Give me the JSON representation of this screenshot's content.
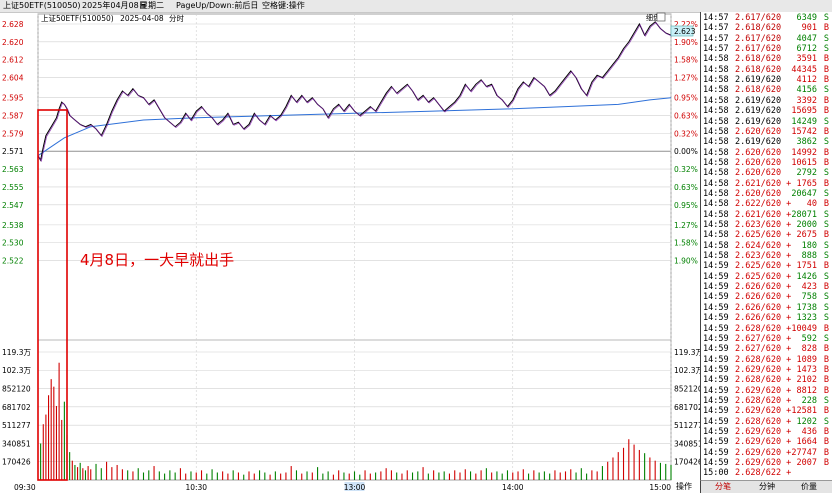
{
  "header": {
    "title": "上证50ETF(510050)",
    "date": "2025年04月08日",
    "weekday": "星期二",
    "hint": "PageUp/Down:前后日",
    "space_hint": "空格键:操作",
    "chart_date": "2025-04-08",
    "chart_mode": "分时",
    "zoom_label": "细盘",
    "current_price": "2.623"
  },
  "annotation": "4月8日，一大早就出手",
  "colors": {
    "price_line": "#000000",
    "avg_line": "#2e70d8",
    "up": "#d00000",
    "down": "#008000",
    "highlight_box": "#e00000"
  },
  "chart_data": {
    "type": "line",
    "prev_close": 2.571,
    "price_ticks": [
      "2.628",
      "2.620",
      "2.612",
      "2.604",
      "2.595",
      "2.587",
      "2.579",
      "2.571",
      "2.563",
      "2.555",
      "2.547",
      "2.538",
      "2.530",
      "2.522"
    ],
    "price_tick_values": [
      2.628,
      2.62,
      2.612,
      2.604,
      2.595,
      2.587,
      2.579,
      2.571,
      2.563,
      2.555,
      2.547,
      2.538,
      2.53,
      2.522
    ],
    "pct_ticks": [
      "2.22%",
      "1.90%",
      "1.58%",
      "1.27%",
      "0.95%",
      "0.63%",
      "0.32%",
      "0.00%",
      "0.32%",
      "0.63%",
      "0.95%",
      "1.27%",
      "1.58%",
      "1.90%"
    ],
    "volume_ticks": [
      "119.3万",
      "102.3万",
      "852120",
      "681702",
      "511277",
      "340851",
      "170426"
    ],
    "volume_tick_values": [
      1193000,
      1023000,
      852120,
      681702,
      511277,
      340851,
      170426
    ],
    "x_ticks": [
      "09:30",
      "10:30",
      "13:00",
      "14:00",
      "15:00"
    ],
    "x_tick_minutes": [
      0,
      60,
      120,
      180,
      240
    ],
    "price": [
      [
        0,
        2.569
      ],
      [
        1,
        2.567
      ],
      [
        2,
        2.573
      ],
      [
        3,
        2.578
      ],
      [
        5,
        2.582
      ],
      [
        7,
        2.586
      ],
      [
        8,
        2.59
      ],
      [
        9,
        2.593
      ],
      [
        10,
        2.592
      ],
      [
        11,
        2.59
      ],
      [
        12,
        2.587
      ],
      [
        14,
        2.585
      ],
      [
        16,
        2.583
      ],
      [
        18,
        2.582
      ],
      [
        20,
        2.583
      ],
      [
        22,
        2.581
      ],
      [
        24,
        2.578
      ],
      [
        26,
        2.583
      ],
      [
        28,
        2.589
      ],
      [
        30,
        2.594
      ],
      [
        32,
        2.598
      ],
      [
        34,
        2.596
      ],
      [
        36,
        2.599
      ],
      [
        38,
        2.596
      ],
      [
        40,
        2.595
      ],
      [
        42,
        2.592
      ],
      [
        44,
        2.594
      ],
      [
        46,
        2.59
      ],
      [
        48,
        2.586
      ],
      [
        50,
        2.584
      ],
      [
        52,
        2.582
      ],
      [
        54,
        2.584
      ],
      [
        56,
        2.588
      ],
      [
        58,
        2.585
      ],
      [
        60,
        2.589
      ],
      [
        62,
        2.591
      ],
      [
        64,
        2.588
      ],
      [
        66,
        2.586
      ],
      [
        68,
        2.583
      ],
      [
        70,
        2.585
      ],
      [
        72,
        2.588
      ],
      [
        74,
        2.583
      ],
      [
        76,
        2.584
      ],
      [
        78,
        2.581
      ],
      [
        80,
        2.583
      ],
      [
        82,
        2.588
      ],
      [
        84,
        2.585
      ],
      [
        86,
        2.583
      ],
      [
        88,
        2.587
      ],
      [
        90,
        2.585
      ],
      [
        92,
        2.587
      ],
      [
        94,
        2.591
      ],
      [
        96,
        2.596
      ],
      [
        98,
        2.593
      ],
      [
        100,
        2.596
      ],
      [
        102,
        2.593
      ],
      [
        104,
        2.595
      ],
      [
        106,
        2.592
      ],
      [
        108,
        2.59
      ],
      [
        110,
        2.586
      ],
      [
        112,
        2.59
      ],
      [
        114,
        2.592
      ],
      [
        116,
        2.589
      ],
      [
        118,
        2.592
      ],
      [
        120,
        2.589
      ],
      [
        122,
        2.587
      ],
      [
        124,
        2.589
      ],
      [
        126,
        2.591
      ],
      [
        128,
        2.589
      ],
      [
        130,
        2.593
      ],
      [
        132,
        2.597
      ],
      [
        134,
        2.6
      ],
      [
        136,
        2.597
      ],
      [
        138,
        2.599
      ],
      [
        140,
        2.601
      ],
      [
        142,
        2.598
      ],
      [
        144,
        2.594
      ],
      [
        146,
        2.596
      ],
      [
        148,
        2.593
      ],
      [
        150,
        2.595
      ],
      [
        152,
        2.592
      ],
      [
        154,
        2.589
      ],
      [
        156,
        2.591
      ],
      [
        158,
        2.593
      ],
      [
        160,
        2.596
      ],
      [
        162,
        2.601
      ],
      [
        164,
        2.598
      ],
      [
        166,
        2.601
      ],
      [
        168,
        2.603
      ],
      [
        170,
        2.6
      ],
      [
        172,
        2.601
      ],
      [
        174,
        2.596
      ],
      [
        176,
        2.594
      ],
      [
        178,
        2.591
      ],
      [
        180,
        2.594
      ],
      [
        182,
        2.599
      ],
      [
        184,
        2.602
      ],
      [
        186,
        2.6
      ],
      [
        188,
        2.604
      ],
      [
        190,
        2.602
      ],
      [
        192,
        2.6
      ],
      [
        194,
        2.596
      ],
      [
        196,
        2.598
      ],
      [
        198,
        2.601
      ],
      [
        200,
        2.604
      ],
      [
        202,
        2.607
      ],
      [
        204,
        2.604
      ],
      [
        206,
        2.599
      ],
      [
        208,
        2.596
      ],
      [
        210,
        2.602
      ],
      [
        212,
        2.605
      ],
      [
        214,
        2.604
      ],
      [
        216,
        2.607
      ],
      [
        218,
        2.61
      ],
      [
        220,
        2.613
      ],
      [
        222,
        2.617
      ],
      [
        224,
        2.62
      ],
      [
        226,
        2.624
      ],
      [
        228,
        2.628
      ],
      [
        230,
        2.623
      ],
      [
        232,
        2.627
      ],
      [
        234,
        2.629
      ],
      [
        236,
        2.626
      ],
      [
        238,
        2.624
      ],
      [
        240,
        2.623
      ]
    ],
    "avg_price": [
      [
        0,
        2.569
      ],
      [
        10,
        2.577
      ],
      [
        20,
        2.582
      ],
      [
        40,
        2.585
      ],
      [
        60,
        2.586
      ],
      [
        90,
        2.587
      ],
      [
        120,
        2.588
      ],
      [
        150,
        2.589
      ],
      [
        180,
        2.59
      ],
      [
        200,
        2.591
      ],
      [
        220,
        2.592
      ],
      [
        232,
        2.594
      ],
      [
        240,
        2.595
      ]
    ],
    "volume": [
      [
        1,
        340000
      ],
      [
        2,
        520000
      ],
      [
        3,
        610000
      ],
      [
        4,
        790000
      ],
      [
        5,
        940000
      ],
      [
        6,
        870000
      ],
      [
        7,
        690000
      ],
      [
        8,
        1093000
      ],
      [
        9,
        560000
      ],
      [
        10,
        730000
      ],
      [
        11,
        420000
      ],
      [
        12,
        260000
      ],
      [
        13,
        180000
      ],
      [
        14,
        140000
      ],
      [
        15,
        120000
      ],
      [
        16,
        160000
      ],
      [
        17,
        110000
      ],
      [
        18,
        90000
      ],
      [
        19,
        130000
      ],
      [
        20,
        100000
      ],
      [
        22,
        150000
      ],
      [
        24,
        110000
      ],
      [
        26,
        170000
      ],
      [
        28,
        120000
      ],
      [
        30,
        140000
      ],
      [
        32,
        100000
      ],
      [
        34,
        90000
      ],
      [
        36,
        80000
      ],
      [
        38,
        110000
      ],
      [
        40,
        70000
      ],
      [
        42,
        90000
      ],
      [
        44,
        130000
      ],
      [
        46,
        80000
      ],
      [
        48,
        60000
      ],
      [
        50,
        90000
      ],
      [
        52,
        70000
      ],
      [
        54,
        110000
      ],
      [
        56,
        60000
      ],
      [
        58,
        80000
      ],
      [
        60,
        70000
      ],
      [
        62,
        90000
      ],
      [
        64,
        60000
      ],
      [
        66,
        100000
      ],
      [
        68,
        70000
      ],
      [
        70,
        80000
      ],
      [
        72,
        60000
      ],
      [
        74,
        90000
      ],
      [
        76,
        70000
      ],
      [
        78,
        50000
      ],
      [
        80,
        80000
      ],
      [
        82,
        60000
      ],
      [
        84,
        90000
      ],
      [
        86,
        70000
      ],
      [
        88,
        50000
      ],
      [
        90,
        80000
      ],
      [
        92,
        60000
      ],
      [
        94,
        70000
      ],
      [
        96,
        130000
      ],
      [
        98,
        90000
      ],
      [
        100,
        60000
      ],
      [
        102,
        80000
      ],
      [
        104,
        70000
      ],
      [
        106,
        120000
      ],
      [
        108,
        60000
      ],
      [
        110,
        80000
      ],
      [
        112,
        50000
      ],
      [
        114,
        90000
      ],
      [
        116,
        70000
      ],
      [
        118,
        60000
      ],
      [
        120,
        80000
      ],
      [
        122,
        50000
      ],
      [
        124,
        90000
      ],
      [
        126,
        60000
      ],
      [
        128,
        70000
      ],
      [
        130,
        80000
      ],
      [
        132,
        110000
      ],
      [
        134,
        90000
      ],
      [
        136,
        70000
      ],
      [
        138,
        60000
      ],
      [
        140,
        90000
      ],
      [
        142,
        70000
      ],
      [
        144,
        80000
      ],
      [
        146,
        120000
      ],
      [
        148,
        60000
      ],
      [
        150,
        90000
      ],
      [
        152,
        70000
      ],
      [
        154,
        80000
      ],
      [
        156,
        60000
      ],
      [
        158,
        90000
      ],
      [
        160,
        70000
      ],
      [
        162,
        100000
      ],
      [
        164,
        80000
      ],
      [
        166,
        60000
      ],
      [
        168,
        90000
      ],
      [
        170,
        110000
      ],
      [
        172,
        70000
      ],
      [
        174,
        80000
      ],
      [
        176,
        60000
      ],
      [
        178,
        90000
      ],
      [
        180,
        70000
      ],
      [
        182,
        80000
      ],
      [
        184,
        100000
      ],
      [
        186,
        60000
      ],
      [
        188,
        90000
      ],
      [
        190,
        70000
      ],
      [
        192,
        80000
      ],
      [
        194,
        60000
      ],
      [
        196,
        90000
      ],
      [
        198,
        70000
      ],
      [
        200,
        80000
      ],
      [
        202,
        100000
      ],
      [
        204,
        70000
      ],
      [
        206,
        110000
      ],
      [
        208,
        60000
      ],
      [
        210,
        90000
      ],
      [
        212,
        80000
      ],
      [
        214,
        130000
      ],
      [
        216,
        170000
      ],
      [
        218,
        210000
      ],
      [
        220,
        260000
      ],
      [
        222,
        300000
      ],
      [
        224,
        380000
      ],
      [
        226,
        330000
      ],
      [
        228,
        280000
      ],
      [
        230,
        250000
      ],
      [
        232,
        210000
      ],
      [
        234,
        180000
      ],
      [
        236,
        160000
      ],
      [
        238,
        150000
      ],
      [
        240,
        140000
      ]
    ]
  },
  "trades": [
    {
      "time": "14:57",
      "price": "2.617/620",
      "flag": "",
      "vol": "6349",
      "side": "S"
    },
    {
      "time": "14:57",
      "price": "2.618/620",
      "flag": "",
      "vol": "901",
      "side": "B"
    },
    {
      "time": "14:57",
      "price": "2.617/620",
      "flag": "",
      "vol": "4047",
      "side": "S"
    },
    {
      "time": "14:57",
      "price": "2.617/620",
      "flag": "",
      "vol": "6712",
      "side": "S"
    },
    {
      "time": "14:58",
      "price": "2.618/620",
      "flag": "",
      "vol": "3591",
      "side": "B"
    },
    {
      "time": "14:58",
      "price": "2.618/620",
      "flag": "",
      "vol": "44345",
      "side": "B"
    },
    {
      "time": "14:58",
      "price": "2.619/620",
      "flag": "",
      "vol": "4112",
      "side": "B"
    },
    {
      "time": "14:58",
      "price": "2.618/620",
      "flag": "",
      "vol": "4156",
      "side": "S"
    },
    {
      "time": "14:58",
      "price": "2.619/620",
      "flag": "",
      "vol": "3392",
      "side": "B"
    },
    {
      "time": "14:58",
      "price": "2.619/620",
      "flag": "",
      "vol": "15695",
      "side": "B"
    },
    {
      "time": "14:58",
      "price": "2.619/620",
      "flag": "",
      "vol": "14249",
      "side": "S"
    },
    {
      "time": "14:58",
      "price": "2.620/620",
      "flag": "",
      "vol": "15742",
      "side": "B"
    },
    {
      "time": "14:58",
      "price": "2.619/620",
      "flag": "",
      "vol": "3862",
      "side": "S"
    },
    {
      "time": "14:58",
      "price": "2.620/620",
      "flag": "",
      "vol": "14992",
      "side": "B"
    },
    {
      "time": "14:58",
      "price": "2.620/620",
      "flag": "",
      "vol": "10615",
      "side": "B"
    },
    {
      "time": "14:58",
      "price": "2.620/620",
      "flag": "",
      "vol": "2792",
      "side": "S"
    },
    {
      "time": "14:58",
      "price": "2.621/620",
      "flag": "+",
      "vol": "1765",
      "side": "B"
    },
    {
      "time": "14:58",
      "price": "2.620/620",
      "flag": "",
      "vol": "20647",
      "side": "S"
    },
    {
      "time": "14:58",
      "price": "2.622/620",
      "flag": "+",
      "vol": "40",
      "side": "B"
    },
    {
      "time": "14:58",
      "price": "2.621/620",
      "flag": "+",
      "vol": "28071",
      "side": "S"
    },
    {
      "time": "14:58",
      "price": "2.623/620",
      "flag": "+",
      "vol": "2000",
      "side": "S"
    },
    {
      "time": "14:58",
      "price": "2.625/620",
      "flag": "+",
      "vol": "2675",
      "side": "B"
    },
    {
      "time": "14:58",
      "price": "2.624/620",
      "flag": "+",
      "vol": "180",
      "side": "S"
    },
    {
      "time": "14:58",
      "price": "2.623/620",
      "flag": "+",
      "vol": "888",
      "side": "S"
    },
    {
      "time": "14:59",
      "price": "2.625/620",
      "flag": "+",
      "vol": "1751",
      "side": "B"
    },
    {
      "time": "14:59",
      "price": "2.625/620",
      "flag": "+",
      "vol": "1426",
      "side": "S"
    },
    {
      "time": "14:59",
      "price": "2.626/620",
      "flag": "+",
      "vol": "423",
      "side": "B"
    },
    {
      "time": "14:59",
      "price": "2.626/620",
      "flag": "+",
      "vol": "758",
      "side": "S"
    },
    {
      "time": "14:59",
      "price": "2.626/620",
      "flag": "+",
      "vol": "1738",
      "side": "S"
    },
    {
      "time": "14:59",
      "price": "2.626/620",
      "flag": "+",
      "vol": "1323",
      "side": "S"
    },
    {
      "time": "14:59",
      "price": "2.628/620",
      "flag": "+",
      "vol": "10049",
      "side": "B"
    },
    {
      "time": "14:59",
      "price": "2.627/620",
      "flag": "+",
      "vol": "592",
      "side": "S"
    },
    {
      "time": "14:59",
      "price": "2.627/620",
      "flag": "+",
      "vol": "828",
      "side": "B"
    },
    {
      "time": "14:59",
      "price": "2.628/620",
      "flag": "+",
      "vol": "1089",
      "side": "B"
    },
    {
      "time": "14:59",
      "price": "2.629/620",
      "flag": "+",
      "vol": "1473",
      "side": "B"
    },
    {
      "time": "14:59",
      "price": "2.628/620",
      "flag": "+",
      "vol": "2102",
      "side": "B"
    },
    {
      "time": "14:59",
      "price": "2.629/620",
      "flag": "+",
      "vol": "8812",
      "side": "B"
    },
    {
      "time": "14:59",
      "price": "2.628/620",
      "flag": "+",
      "vol": "228",
      "side": "S"
    },
    {
      "time": "14:59",
      "price": "2.629/620",
      "flag": "+",
      "vol": "12581",
      "side": "B"
    },
    {
      "time": "14:59",
      "price": "2.628/620",
      "flag": "+",
      "vol": "1202",
      "side": "S"
    },
    {
      "time": "14:59",
      "price": "2.629/620",
      "flag": "+",
      "vol": "436",
      "side": "B"
    },
    {
      "time": "14:59",
      "price": "2.629/620",
      "flag": "+",
      "vol": "1664",
      "side": "B"
    },
    {
      "time": "14:59",
      "price": "2.629/620",
      "flag": "+",
      "vol": "27747",
      "side": "B"
    },
    {
      "time": "14:59",
      "price": "2.629/620",
      "flag": "+",
      "vol": "2007",
      "side": "B"
    },
    {
      "time": "15:00",
      "price": "2.628/622",
      "flag": "+",
      "vol": "",
      "side": ""
    }
  ],
  "footer": {
    "operate": "操作",
    "tabs": [
      "分笔",
      "分钟",
      "价量"
    ]
  }
}
